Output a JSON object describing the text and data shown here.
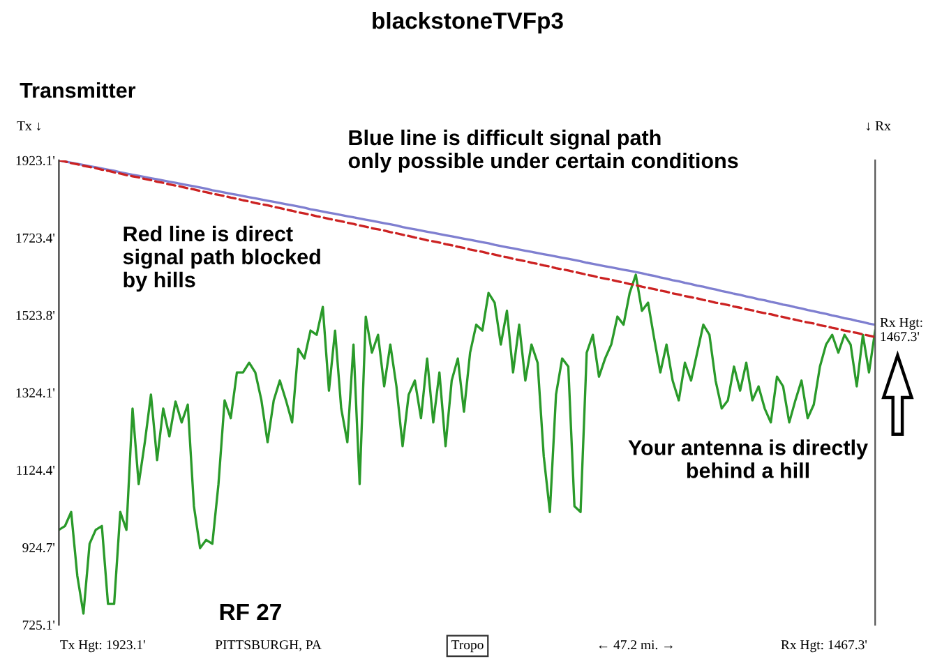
{
  "chart_data": {
    "type": "line",
    "title": "blackstoneTVFp3",
    "categories": [
      null,
      null,
      null,
      null,
      null,
      null,
      null,
      null,
      null,
      null,
      null,
      null,
      null,
      null,
      null,
      null,
      null,
      null,
      null,
      null,
      null,
      null,
      null,
      null,
      null,
      null,
      null,
      null,
      null,
      null,
      null,
      null,
      null,
      null,
      null,
      null,
      null,
      null,
      null,
      null,
      null,
      null,
      null,
      null,
      null,
      null,
      null,
      null,
      null,
      null,
      null,
      null,
      null,
      null,
      null,
      null,
      null,
      null,
      null,
      null,
      null,
      null,
      null,
      null,
      null,
      null,
      null,
      null,
      null,
      null,
      null,
      null,
      null,
      null,
      null,
      null,
      null,
      null,
      null,
      null,
      null,
      null,
      null,
      null,
      null,
      null,
      null,
      null,
      null,
      null,
      null,
      null,
      null,
      null,
      null,
      null,
      null,
      null,
      null,
      null,
      null,
      null,
      null,
      null,
      null,
      null,
      null,
      null,
      null,
      null,
      null,
      null,
      null,
      null,
      null,
      null,
      null,
      null,
      null,
      null,
      null,
      null,
      null,
      null,
      null,
      null,
      null,
      null,
      null,
      null,
      null,
      null,
      null,
      null
    ],
    "ylim": [
      725.1,
      1923.1
    ],
    "yticks": [
      {
        "value": 725.1,
        "label": "725.1'"
      },
      {
        "value": 924.7,
        "label": "924.7'"
      },
      {
        "value": 1124.4,
        "label": "1124.4'"
      },
      {
        "value": 1324.1,
        "label": "1324.1'"
      },
      {
        "value": 1523.8,
        "label": "1523.8'"
      },
      {
        "value": 1723.4,
        "label": "1723.4'"
      },
      {
        "value": 1923.1,
        "label": "1923.1'"
      }
    ],
    "tick_labels": "y",
    "grid": false,
    "legend": false,
    "series": [
      {
        "color": "#2a9a2a",
        "line_style": "solid",
        "values": [
          970,
          980,
          1016,
          851,
          754,
          934,
          970,
          980,
          779,
          779,
          1016,
          970,
          1283,
          1088,
          1196,
          1319,
          1150,
          1283,
          1211,
          1301,
          1247,
          1293,
          1031,
          923,
          944,
          934,
          1088,
          1304,
          1258,
          1376,
          1376,
          1401,
          1376,
          1304,
          1196,
          1304,
          1355,
          1304,
          1247,
          1437,
          1412,
          1484,
          1473,
          1545,
          1329,
          1484,
          1283,
          1196,
          1448,
          1088,
          1520,
          1427,
          1473,
          1340,
          1448,
          1340,
          1186,
          1319,
          1355,
          1258,
          1412,
          1247,
          1376,
          1186,
          1355,
          1412,
          1275,
          1427,
          1499,
          1484,
          1581,
          1556,
          1448,
          1535,
          1376,
          1499,
          1355,
          1448,
          1401,
          1160,
          1016,
          1319,
          1412,
          1391,
          1031,
          1016,
          1427,
          1473,
          1365,
          1412,
          1448,
          1520,
          1499,
          1581,
          1628,
          1535,
          1556,
          1463,
          1376,
          1448,
          1355,
          1304,
          1401,
          1355,
          1427,
          1499,
          1473,
          1355,
          1283,
          1304,
          1391,
          1329,
          1401,
          1304,
          1340,
          1283,
          1247,
          1365,
          1340,
          1247,
          1304,
          1355,
          1258,
          1293,
          1391,
          1448,
          1473,
          1427,
          1473,
          1448,
          1340,
          1473,
          1376,
          1484
        ]
      },
      {
        "color": "#7f7fd0",
        "line_style": "solid",
        "values": [
          1923,
          1920,
          1917,
          1914,
          1911,
          1908,
          1905,
          1902,
          1899,
          1896,
          1892,
          1889,
          1886,
          1883,
          1880,
          1877,
          1874,
          1871,
          1868,
          1865,
          1862,
          1859,
          1856,
          1853,
          1850,
          1846,
          1843,
          1840,
          1837,
          1834,
          1831,
          1828,
          1825,
          1822,
          1819,
          1816,
          1813,
          1810,
          1807,
          1804,
          1801,
          1797,
          1794,
          1791,
          1788,
          1785,
          1782,
          1779,
          1776,
          1773,
          1770,
          1767,
          1764,
          1761,
          1758,
          1755,
          1751,
          1748,
          1745,
          1742,
          1739,
          1736,
          1733,
          1730,
          1727,
          1724,
          1721,
          1718,
          1715,
          1712,
          1709,
          1705,
          1702,
          1699,
          1696,
          1693,
          1690,
          1687,
          1684,
          1681,
          1678,
          1675,
          1672,
          1669,
          1666,
          1663,
          1659,
          1656,
          1653,
          1650,
          1647,
          1644,
          1641,
          1638,
          1635,
          1632,
          1628,
          1625,
          1621,
          1618,
          1614,
          1611,
          1607,
          1604,
          1600,
          1597,
          1593,
          1590,
          1586,
          1583,
          1579,
          1576,
          1572,
          1569,
          1565,
          1562,
          1558,
          1555,
          1551,
          1548,
          1544,
          1541,
          1537,
          1534,
          1530,
          1527,
          1523,
          1520,
          1516,
          1513,
          1509,
          1506,
          1502,
          1499
        ]
      },
      {
        "color": "#cc2222",
        "line_style": "dashed",
        "values": [
          1923,
          1920,
          1916,
          1913,
          1909,
          1906,
          1903,
          1899,
          1896,
          1892,
          1889,
          1885,
          1882,
          1879,
          1875,
          1872,
          1868,
          1865,
          1861,
          1858,
          1855,
          1851,
          1848,
          1844,
          1841,
          1837,
          1834,
          1831,
          1827,
          1824,
          1820,
          1817,
          1813,
          1810,
          1807,
          1803,
          1800,
          1796,
          1793,
          1789,
          1786,
          1783,
          1779,
          1776,
          1772,
          1769,
          1766,
          1762,
          1759,
          1755,
          1752,
          1748,
          1745,
          1742,
          1738,
          1735,
          1731,
          1728,
          1724,
          1721,
          1717,
          1714,
          1711,
          1707,
          1704,
          1700,
          1697,
          1693,
          1690,
          1687,
          1683,
          1680,
          1676,
          1673,
          1669,
          1666,
          1663,
          1659,
          1656,
          1652,
          1649,
          1645,
          1642,
          1639,
          1635,
          1632,
          1628,
          1625,
          1621,
          1618,
          1615,
          1611,
          1608,
          1604,
          1601,
          1597,
          1594,
          1591,
          1587,
          1584,
          1580,
          1577,
          1573,
          1570,
          1567,
          1563,
          1560,
          1556,
          1553,
          1550,
          1546,
          1543,
          1539,
          1536,
          1532,
          1529,
          1526,
          1522,
          1519,
          1515,
          1512,
          1508,
          1505,
          1502,
          1498,
          1495,
          1491,
          1488,
          1484,
          1481,
          1478,
          1474,
          1471,
          1467
        ]
      }
    ],
    "annotations": [
      "Transmitter",
      "Tx ↓",
      "↓ Rx",
      "Blue line is difficult signal path\nonly possible under certain conditions",
      "Red line is direct\nsignal path blocked\nby hills",
      "Your antenna is directly\nbehind a hill",
      "RF 27",
      "Tx Hgt: 1923.1'",
      "PITTSBURGH, PA",
      "Tropo",
      "← 47.2 mi. →",
      "Rx Hgt: 1467.3'",
      "Rx Hgt:\n1467.3'"
    ]
  }
}
